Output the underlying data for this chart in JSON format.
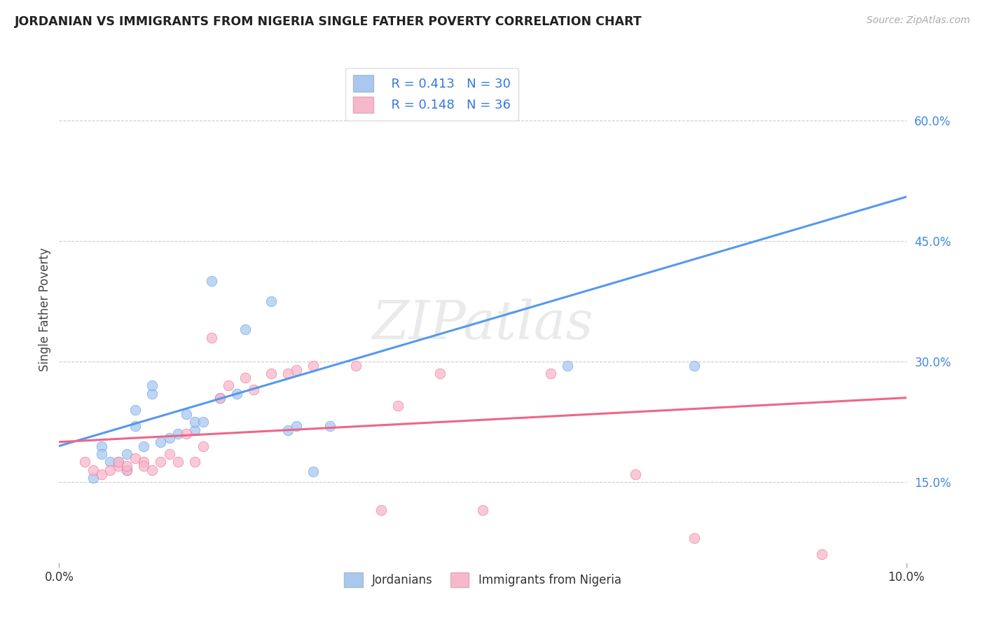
{
  "title": "JORDANIAN VS IMMIGRANTS FROM NIGERIA SINGLE FATHER POVERTY CORRELATION CHART",
  "source": "Source: ZipAtlas.com",
  "ylabel": "Single Father Poverty",
  "right_yticks": [
    "15.0%",
    "30.0%",
    "45.0%",
    "60.0%"
  ],
  "right_ytick_vals": [
    0.15,
    0.3,
    0.45,
    0.6
  ],
  "xlim": [
    0.0,
    0.1
  ],
  "ylim": [
    0.05,
    0.68
  ],
  "legend_R1": "R = 0.413",
  "legend_N1": "N = 30",
  "legend_R2": "R = 0.148",
  "legend_N2": "N = 36",
  "color_jordan": "#a8c8f0",
  "color_nigeria": "#f8b8cc",
  "color_jordan_line": "#5599ee",
  "color_nigeria_line": "#ee6688",
  "legend_label1": "Jordanians",
  "legend_label2": "Immigrants from Nigeria",
  "watermark": "ZIPatlas",
  "bg_color": "#ffffff",
  "jordan_scatter_x": [
    0.004,
    0.005,
    0.005,
    0.006,
    0.007,
    0.008,
    0.008,
    0.009,
    0.009,
    0.01,
    0.011,
    0.011,
    0.012,
    0.013,
    0.014,
    0.015,
    0.016,
    0.016,
    0.017,
    0.018,
    0.019,
    0.021,
    0.022,
    0.025,
    0.027,
    0.028,
    0.03,
    0.032,
    0.06,
    0.075
  ],
  "jordan_scatter_y": [
    0.155,
    0.195,
    0.185,
    0.175,
    0.175,
    0.185,
    0.165,
    0.22,
    0.24,
    0.195,
    0.26,
    0.27,
    0.2,
    0.205,
    0.21,
    0.235,
    0.215,
    0.225,
    0.225,
    0.4,
    0.255,
    0.26,
    0.34,
    0.375,
    0.215,
    0.22,
    0.163,
    0.22,
    0.295,
    0.295
  ],
  "nigeria_scatter_x": [
    0.003,
    0.004,
    0.005,
    0.006,
    0.007,
    0.007,
    0.008,
    0.008,
    0.009,
    0.01,
    0.01,
    0.011,
    0.012,
    0.013,
    0.014,
    0.015,
    0.016,
    0.017,
    0.018,
    0.019,
    0.02,
    0.022,
    0.023,
    0.025,
    0.027,
    0.028,
    0.03,
    0.035,
    0.038,
    0.04,
    0.045,
    0.05,
    0.058,
    0.068,
    0.075,
    0.09
  ],
  "nigeria_scatter_y": [
    0.175,
    0.165,
    0.16,
    0.165,
    0.17,
    0.175,
    0.165,
    0.17,
    0.18,
    0.175,
    0.17,
    0.165,
    0.175,
    0.185,
    0.175,
    0.21,
    0.175,
    0.195,
    0.33,
    0.255,
    0.27,
    0.28,
    0.265,
    0.285,
    0.285,
    0.29,
    0.295,
    0.295,
    0.115,
    0.245,
    0.285,
    0.115,
    0.285,
    0.16,
    0.08,
    0.06
  ],
  "jordan_line_x": [
    0.0,
    0.1
  ],
  "jordan_line_y": [
    0.195,
    0.505
  ],
  "nigeria_line_x": [
    0.0,
    0.1
  ],
  "nigeria_line_y": [
    0.2,
    0.255
  ]
}
